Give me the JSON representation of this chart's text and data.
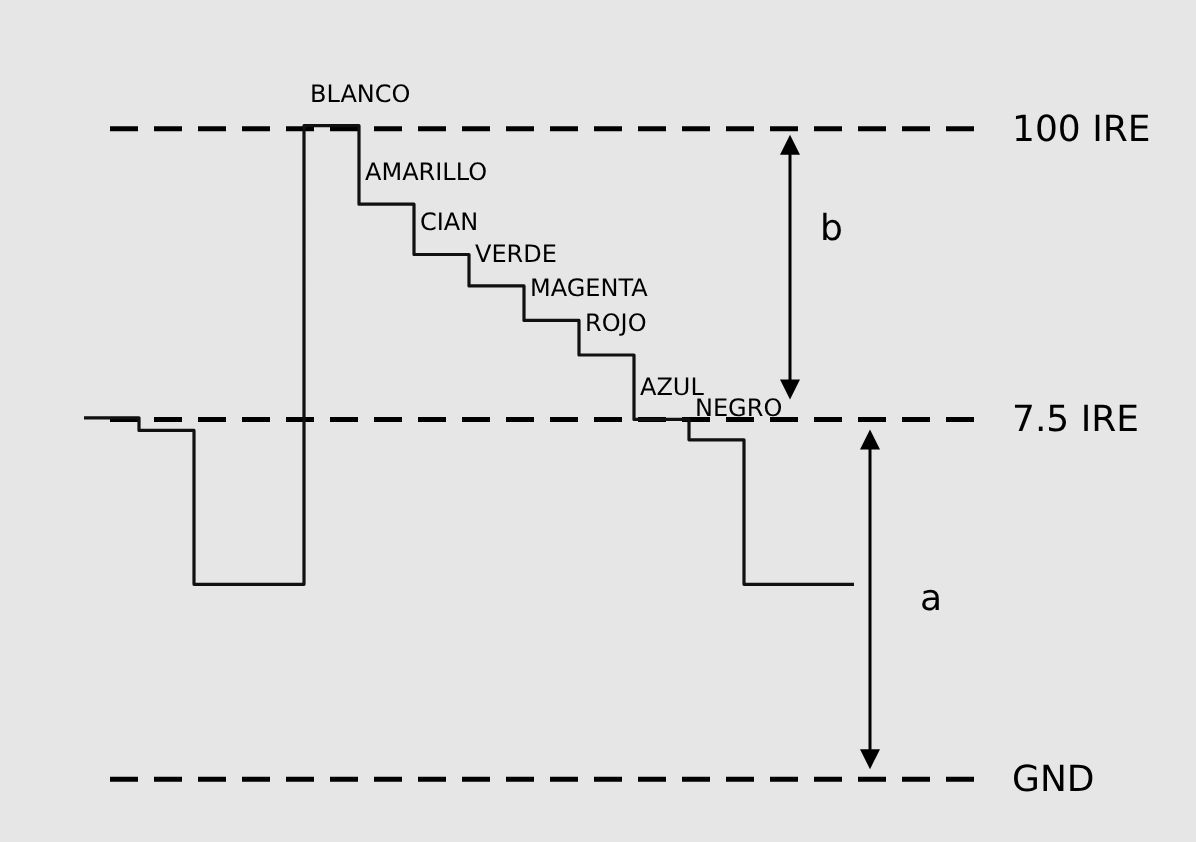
{
  "chart_data": {
    "type": "step",
    "tick_labels": false,
    "ylim": [
      -127,
      141
    ],
    "line_style": "solid",
    "categories": [
      null,
      null,
      null,
      null,
      null,
      null,
      null,
      null,
      null,
      null,
      null,
      null,
      null,
      null,
      null
    ],
    "series": [
      {
        "color": "#111111",
        "values": [
          8,
          4,
          -45,
          -45,
          101,
          76,
          60,
          50,
          39,
          28,
          7.5,
          1,
          -45,
          -45,
          -45
        ],
        "value_labels": [
          null,
          null,
          null,
          null,
          "BLANCO",
          "AMARILLO",
          "CIAN",
          "VERDE",
          "MAGENTA",
          "ROJO",
          "AZUL",
          "NEGRO",
          null,
          null,
          null
        ]
      }
    ],
    "ref_lines": [
      {
        "axis": "y",
        "value": 100,
        "label": "100 IRE",
        "line_style": "dashed",
        "color": "#000000"
      },
      {
        "axis": "y",
        "value": 7.5,
        "label": "7.5 IRE",
        "line_style": "dashed",
        "color": "#000000"
      },
      {
        "axis": "y",
        "value": -107,
        "label": "GND",
        "line_style": "dashed",
        "color": "#000000"
      }
    ],
    "annotations": [
      "b",
      "a"
    ]
  }
}
